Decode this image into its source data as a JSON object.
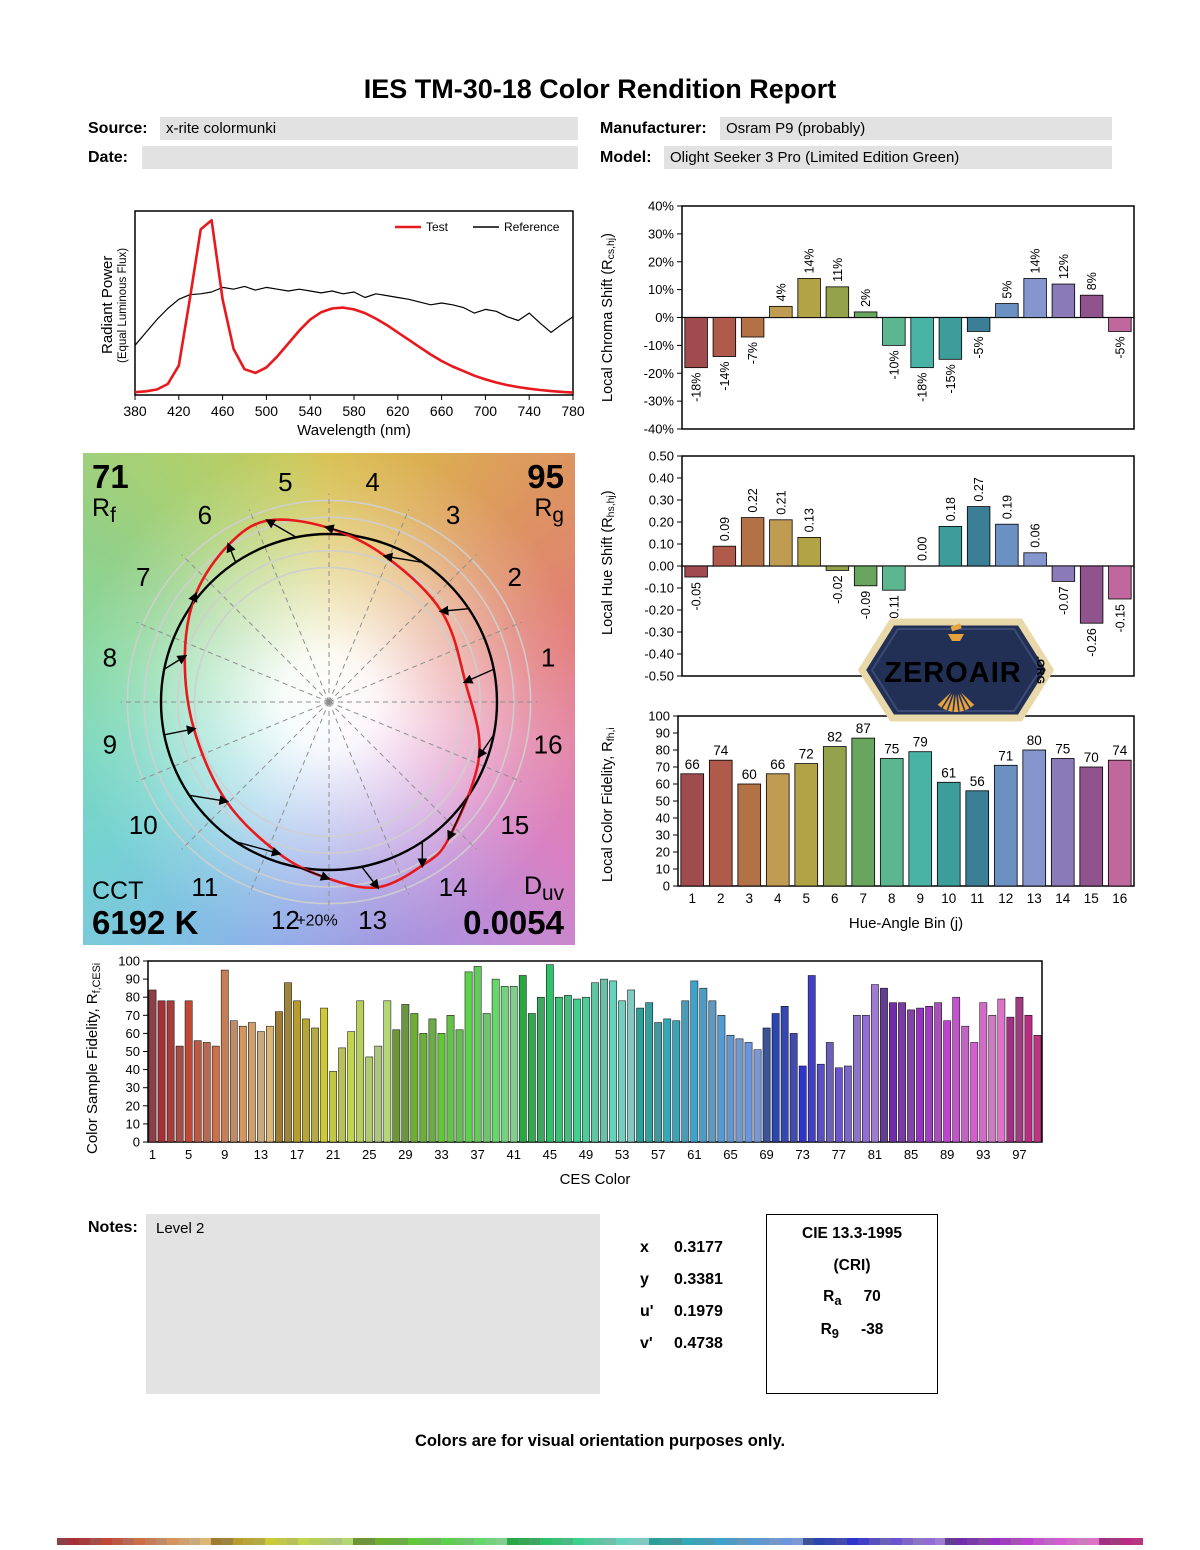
{
  "title": "IES TM-30-18 Color Rendition Report",
  "header": {
    "source_label": "Source:",
    "source_value": "x-rite colormunki",
    "manufacturer_label": "Manufacturer:",
    "manufacturer_value": "Osram P9 (probably)",
    "date_label": "Date:",
    "date_value": "",
    "model_label": "Model:",
    "model_value": "Olight Seeker 3 Pro (Limited Edition Green)"
  },
  "cvg_labels": {
    "rf_main": "R",
    "rf_sub": "f",
    "rg_main": "R",
    "rg_sub": "g",
    "cct_label": "CCT",
    "duv_main": "D",
    "duv_sub": "uv"
  },
  "watermark": {
    "name": "ZEROAIR",
    "org": ".ORG"
  },
  "notes": {
    "label": "Notes:",
    "text": "Level 2"
  },
  "chromaticity": {
    "rows": [
      {
        "label": "x",
        "value": "0.3177"
      },
      {
        "label": "y",
        "value": "0.3381"
      },
      {
        "label": "u'",
        "value": "0.1979"
      },
      {
        "label": "v'",
        "value": "0.4738"
      }
    ]
  },
  "cri_box": {
    "title": "CIE 13.3-1995",
    "subtitle": "(CRI)",
    "ra_main": "R",
    "ra_sub": "a",
    "ra_value": "70",
    "r9_main": "R",
    "r9_sub": "9",
    "r9_value": "-38"
  },
  "footer": "Colors are for visual orientation purposes only.",
  "bin_colors": [
    "#a04c4f",
    "#b05a4b",
    "#b37146",
    "#c09c53",
    "#b2a446",
    "#94a24b",
    "#69a55e",
    "#5cb791",
    "#48b2a5",
    "#3d9d9b",
    "#3b7f96",
    "#6b90c2",
    "#8496cd",
    "#8a7bb8",
    "#8f548e",
    "#c0679e"
  ],
  "chart_data": [
    {
      "id": "spd",
      "type": "line",
      "xlabel": "Wavelength (nm)",
      "ylabel_line1": "Radiant Power",
      "ylabel_line2": "(Equal Luminous Flux)",
      "xlim": [
        380,
        780
      ],
      "xticks": [
        380,
        420,
        460,
        500,
        540,
        580,
        620,
        660,
        700,
        740,
        780
      ],
      "series": [
        {
          "name": "Test",
          "color": "#e8191c",
          "width": 2.6,
          "x": [
            380,
            390,
            400,
            410,
            420,
            430,
            440,
            450,
            460,
            470,
            480,
            490,
            500,
            510,
            520,
            530,
            540,
            550,
            560,
            570,
            580,
            590,
            600,
            610,
            620,
            630,
            640,
            650,
            660,
            670,
            680,
            690,
            700,
            710,
            720,
            730,
            740,
            750,
            760,
            770,
            780
          ],
          "y": [
            0.015,
            0.02,
            0.03,
            0.06,
            0.16,
            0.52,
            0.9,
            0.95,
            0.52,
            0.25,
            0.14,
            0.12,
            0.15,
            0.21,
            0.28,
            0.35,
            0.41,
            0.45,
            0.47,
            0.475,
            0.465,
            0.445,
            0.415,
            0.38,
            0.34,
            0.3,
            0.26,
            0.22,
            0.185,
            0.155,
            0.13,
            0.105,
            0.085,
            0.068,
            0.054,
            0.043,
            0.034,
            0.027,
            0.021,
            0.017,
            0.013
          ]
        },
        {
          "name": "Reference",
          "color": "#000000",
          "width": 1.2,
          "x": [
            380,
            390,
            400,
            410,
            420,
            430,
            440,
            450,
            460,
            470,
            480,
            490,
            500,
            510,
            520,
            530,
            540,
            550,
            560,
            570,
            580,
            590,
            600,
            610,
            620,
            630,
            640,
            650,
            660,
            670,
            680,
            690,
            700,
            710,
            720,
            730,
            740,
            750,
            760,
            770,
            780
          ],
          "y": [
            0.27,
            0.34,
            0.41,
            0.47,
            0.52,
            0.545,
            0.55,
            0.56,
            0.585,
            0.575,
            0.59,
            0.57,
            0.585,
            0.575,
            0.565,
            0.575,
            0.565,
            0.555,
            0.565,
            0.55,
            0.56,
            0.53,
            0.55,
            0.54,
            0.53,
            0.52,
            0.505,
            0.49,
            0.5,
            0.49,
            0.475,
            0.445,
            0.465,
            0.455,
            0.425,
            0.405,
            0.445,
            0.39,
            0.34,
            0.385,
            0.425
          ]
        }
      ]
    },
    {
      "id": "chroma_shift",
      "type": "bar",
      "ylabel_pre": "Local Chroma Shift (R",
      "ylabel_sub": "cs,hj",
      "ylabel_post": ")",
      "ylim": [
        -40,
        40
      ],
      "ytick_vals": [
        40,
        30,
        20,
        10,
        0,
        -10,
        -20,
        -30,
        -40
      ],
      "ytick_labels": [
        "40%",
        "30%",
        "20%",
        "10%",
        "0%",
        "-10%",
        "-20%",
        "-30%",
        "-40%"
      ],
      "categories": [
        1,
        2,
        3,
        4,
        5,
        6,
        7,
        8,
        9,
        10,
        11,
        12,
        13,
        14,
        15,
        16
      ],
      "values": [
        -18,
        -14,
        -7,
        4,
        14,
        11,
        2,
        -10,
        -18,
        -15,
        -5,
        5,
        14,
        12,
        8,
        -5
      ],
      "bar_labels": [
        "-18%",
        "-14%",
        "-7%",
        "4%",
        "14%",
        "11%",
        "2%",
        "-10%",
        "-18%",
        "-15%",
        "-5%",
        "5%",
        "14%",
        "12%",
        "8%",
        "-5%"
      ],
      "use_bin_colors": true
    },
    {
      "id": "hue_shift",
      "type": "bar",
      "ylabel_pre": "Local Hue Shift (R",
      "ylabel_sub": "hs,hj",
      "ylabel_post": ")",
      "ylim": [
        -0.5,
        0.5
      ],
      "ytick_vals": [
        0.5,
        0.4,
        0.3,
        0.2,
        0.1,
        0,
        -0.1,
        -0.2,
        -0.3,
        -0.4,
        -0.5
      ],
      "ytick_labels": [
        "0.50",
        "0.40",
        "0.30",
        "0.20",
        "0.10",
        "0.00",
        "-0.10",
        "-0.20",
        "-0.30",
        "-0.40",
        "-0.50"
      ],
      "categories": [
        1,
        2,
        3,
        4,
        5,
        6,
        7,
        8,
        9,
        10,
        11,
        12,
        13,
        14,
        15,
        16
      ],
      "values": [
        -0.05,
        0.09,
        0.22,
        0.21,
        0.13,
        -0.02,
        -0.09,
        -0.11,
        0,
        0.18,
        0.27,
        0.19,
        0.06,
        -0.07,
        -0.26,
        -0.15
      ],
      "bar_labels": [
        "-0.05",
        "0.09",
        "0.22",
        "0.21",
        "0.13",
        "-0.02",
        "-0.09",
        "-0.11",
        "0.00",
        "0.18",
        "0.27",
        "0.19",
        "0.06",
        "-0.07",
        "-0.26",
        "-0.15"
      ],
      "use_bin_colors": true
    },
    {
      "id": "fidelity",
      "type": "bar",
      "ylabel_pre": "Local Color Fidelity, R",
      "ylabel_sub": "fh,i",
      "ylabel_post": "",
      "xlabel": "Hue-Angle Bin (j)",
      "ylim": [
        0,
        100
      ],
      "ytick_vals": [
        100,
        90,
        80,
        70,
        60,
        50,
        40,
        30,
        20,
        10,
        0
      ],
      "ytick_labels": [
        "100",
        "90",
        "80",
        "70",
        "60",
        "50",
        "40",
        "30",
        "20",
        "10",
        "0"
      ],
      "categories": [
        1,
        2,
        3,
        4,
        5,
        6,
        7,
        8,
        9,
        10,
        11,
        12,
        13,
        14,
        15,
        16
      ],
      "values": [
        66,
        74,
        60,
        66,
        72,
        82,
        87,
        75,
        79,
        61,
        56,
        71,
        80,
        75,
        70,
        74
      ],
      "bar_labels": [
        "66",
        "74",
        "60",
        "66",
        "72",
        "82",
        "87",
        "75",
        "79",
        "61",
        "56",
        "71",
        "80",
        "75",
        "70",
        "74"
      ],
      "use_bin_colors": true,
      "show_cat_labels": true
    },
    {
      "id": "ces",
      "type": "bar",
      "ylabel_pre": "Color Sample Fidelity, R",
      "ylabel_sub": "f,CESi",
      "ylabel_post": "",
      "xlabel": "CES Color",
      "ylim": [
        0,
        100
      ],
      "ytick_vals": [
        100,
        90,
        80,
        70,
        60,
        50,
        40,
        30,
        20,
        10,
        0
      ],
      "ytick_labels": [
        "100",
        "90",
        "80",
        "70",
        "60",
        "50",
        "40",
        "30",
        "20",
        "10",
        "0"
      ],
      "xtick_labels": [
        1,
        5,
        9,
        13,
        17,
        21,
        25,
        29,
        33,
        37,
        41,
        45,
        49,
        53,
        57,
        61,
        65,
        69,
        73,
        77,
        81,
        85,
        89,
        93,
        97
      ],
      "values": [
        84,
        78,
        78,
        53,
        78,
        56,
        55,
        53,
        95,
        67,
        64,
        66,
        61,
        64,
        72,
        88,
        78,
        68,
        63,
        74,
        39,
        52,
        61,
        78,
        47,
        53,
        78,
        62,
        76,
        71,
        60,
        68,
        60,
        70,
        62,
        94,
        97,
        71,
        90,
        86,
        86,
        92,
        71,
        80,
        98,
        80,
        81,
        79,
        80,
        88,
        90,
        89,
        78,
        84,
        74,
        77,
        66,
        68,
        67,
        78,
        89,
        85,
        78,
        70,
        59,
        57,
        55,
        51,
        63,
        71,
        75,
        60,
        42,
        92,
        43,
        55,
        41,
        42,
        70,
        70,
        87,
        85,
        77,
        77,
        73,
        74,
        75,
        77,
        67,
        80,
        64,
        55,
        77,
        70,
        79,
        69,
        80,
        70,
        59
      ]
    },
    {
      "id": "cvg",
      "type": "color-vector-graphic",
      "rf": 71,
      "rg": 95,
      "cct": "6192 K",
      "duv": "0.0054",
      "ring_label": "+20%",
      "bin_count": 16
    }
  ]
}
